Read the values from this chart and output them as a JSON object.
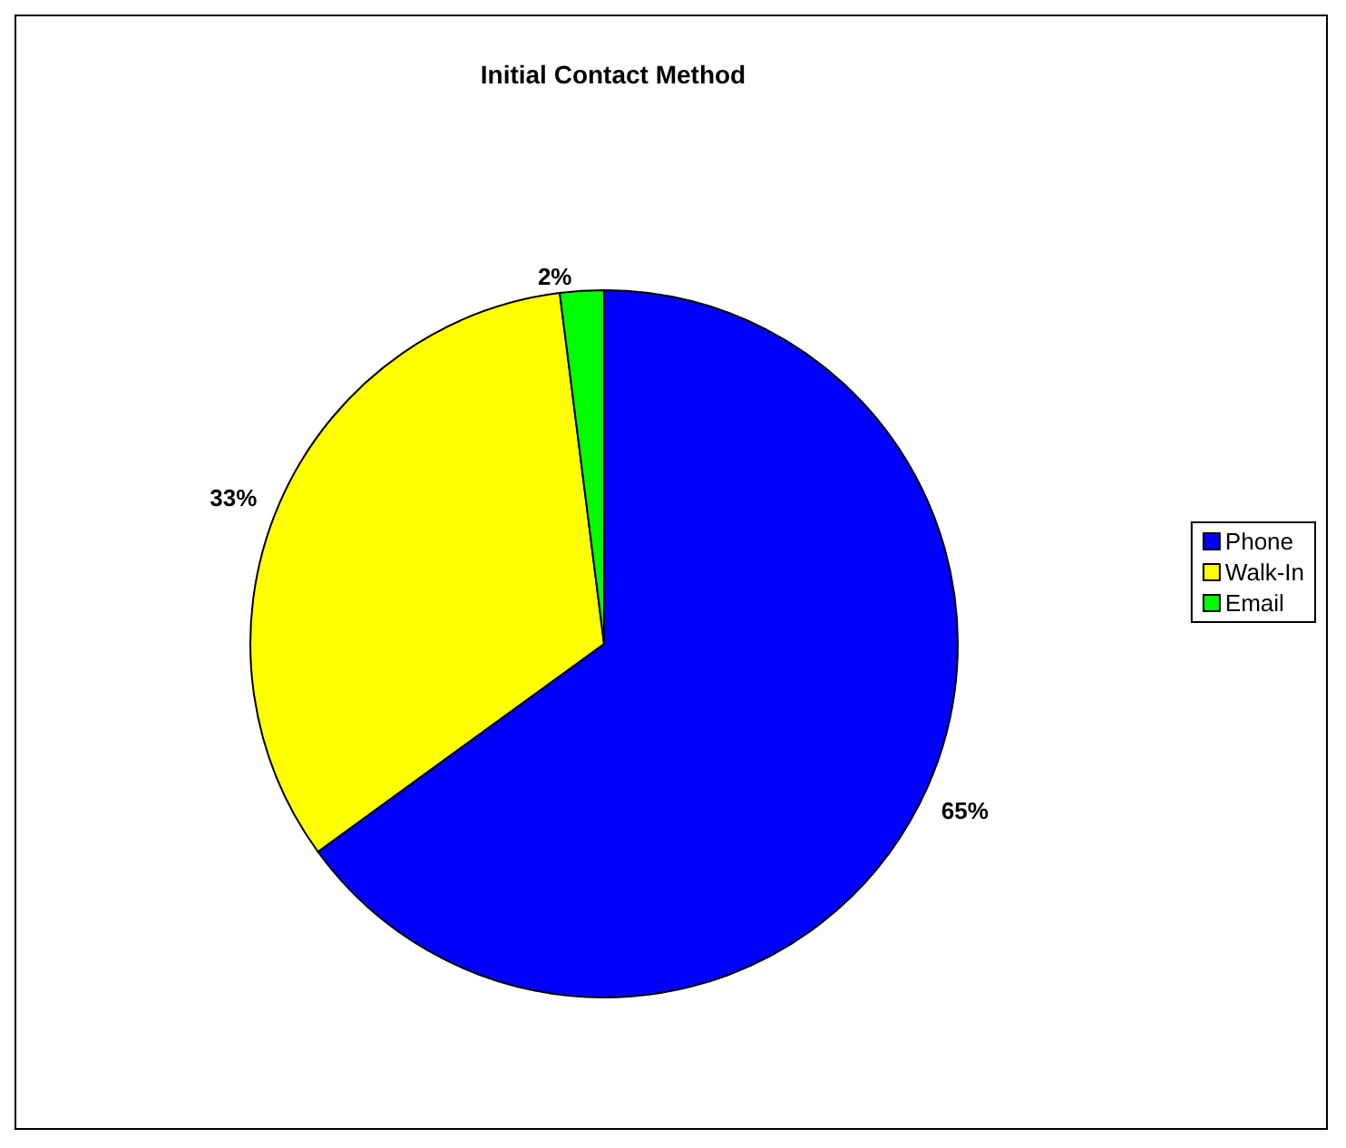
{
  "chart_data": {
    "type": "pie",
    "title": "Initial Contact Method",
    "categories": [
      "Phone",
      "Walk-In",
      "Email"
    ],
    "values": [
      65,
      33,
      2
    ],
    "value_labels": [
      "65%",
      "33%",
      "2%"
    ],
    "colors": [
      "#0000ff",
      "#ffff00",
      "#00ff00"
    ],
    "legend": "right"
  }
}
